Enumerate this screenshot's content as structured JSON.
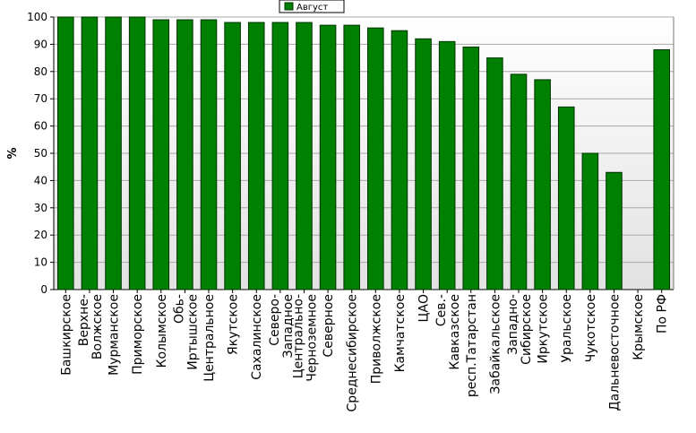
{
  "chart_data": {
    "type": "bar",
    "title": "",
    "xlabel": "",
    "ylabel": "%",
    "ylim": [
      0,
      100
    ],
    "yticks": [
      0,
      10,
      20,
      30,
      40,
      50,
      60,
      70,
      80,
      90,
      100
    ],
    "grid": true,
    "legend_position": "top-center",
    "colors": {
      "bar": "#008000",
      "bar_stroke": "#003300",
      "plot_bg_top": "#ffffff",
      "plot_bg_bottom": "#e2e2e2",
      "grid": "#a8a8a8"
    },
    "categories": [
      "Башкирское",
      "Верхне-Волжское",
      "Мурманское",
      "Приморское",
      "Колымское",
      "Обь-Иртышское",
      "Центральное",
      "Якутское",
      "Сахалинское",
      "Северо-Западное",
      "Центрально-Черноземное",
      "Северное",
      "Среднесибирское",
      "Приволжское",
      "Камчатское",
      "ЦАО",
      "Сев.-Кавказское",
      "респ.Татарстан",
      "Забайкальское",
      "Западно-Сибирское",
      "Иркутское",
      "Уральское",
      "Чукотское",
      "Дальневосточное",
      "Крымское",
      "По РФ"
    ],
    "label_lines": [
      [
        "Башкирское"
      ],
      [
        "Верхне-",
        "Волжское"
      ],
      [
        "Мурманское"
      ],
      [
        "Приморское"
      ],
      [
        "Колымское"
      ],
      [
        "Обь-",
        "Иртышское"
      ],
      [
        "Центральное"
      ],
      [
        "Якутское"
      ],
      [
        "Сахалинское"
      ],
      [
        "Северо-",
        "Западное"
      ],
      [
        "Центрально-",
        "Черноземное"
      ],
      [
        "Северное"
      ],
      [
        "Среднесибирское"
      ],
      [
        "Приволжское"
      ],
      [
        "Камчатское"
      ],
      [
        "ЦАО"
      ],
      [
        "Сев.-",
        "Кавказское"
      ],
      [
        "респ.Татарстан"
      ],
      [
        "Забайкальское"
      ],
      [
        "Западно-",
        "Сибирское"
      ],
      [
        "Иркутское"
      ],
      [
        "Уральское"
      ],
      [
        "Чукотское"
      ],
      [
        "Дальневосточное"
      ],
      [
        "Крымское"
      ],
      [
        "По РФ"
      ]
    ],
    "series": [
      {
        "name": "Август",
        "values": [
          100,
          100,
          100,
          100,
          99,
          99,
          99,
          98,
          98,
          98,
          98,
          97,
          97,
          96,
          95,
          92,
          91,
          89,
          85,
          79,
          77,
          67,
          50,
          43,
          0,
          88
        ]
      }
    ]
  }
}
